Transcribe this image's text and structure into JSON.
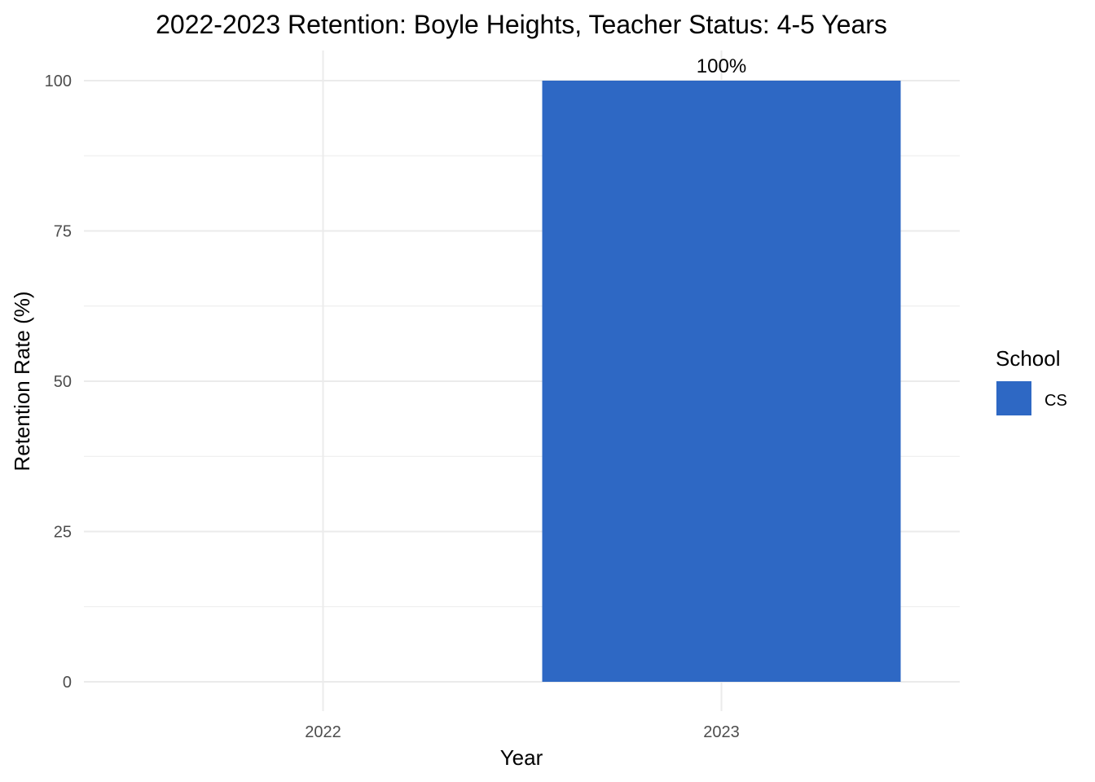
{
  "chart_data": {
    "type": "bar",
    "title": "2022-2023 Retention: Boyle Heights, Teacher Status: 4-5 Years",
    "xlabel": "Year",
    "ylabel": "Retention Rate (%)",
    "categories": [
      "2022",
      "2023"
    ],
    "series": [
      {
        "name": "CS",
        "values": [
          null,
          100
        ],
        "labels": [
          "",
          "100%"
        ],
        "color": "#2E68C4"
      }
    ],
    "ylim": [
      0,
      100
    ],
    "yticks": [
      0,
      25,
      50,
      75,
      100
    ],
    "grid": true,
    "legend": {
      "title": "School",
      "position": "right"
    },
    "colors": {
      "bar": "#2E68C4",
      "grid": "#ebebeb"
    }
  }
}
